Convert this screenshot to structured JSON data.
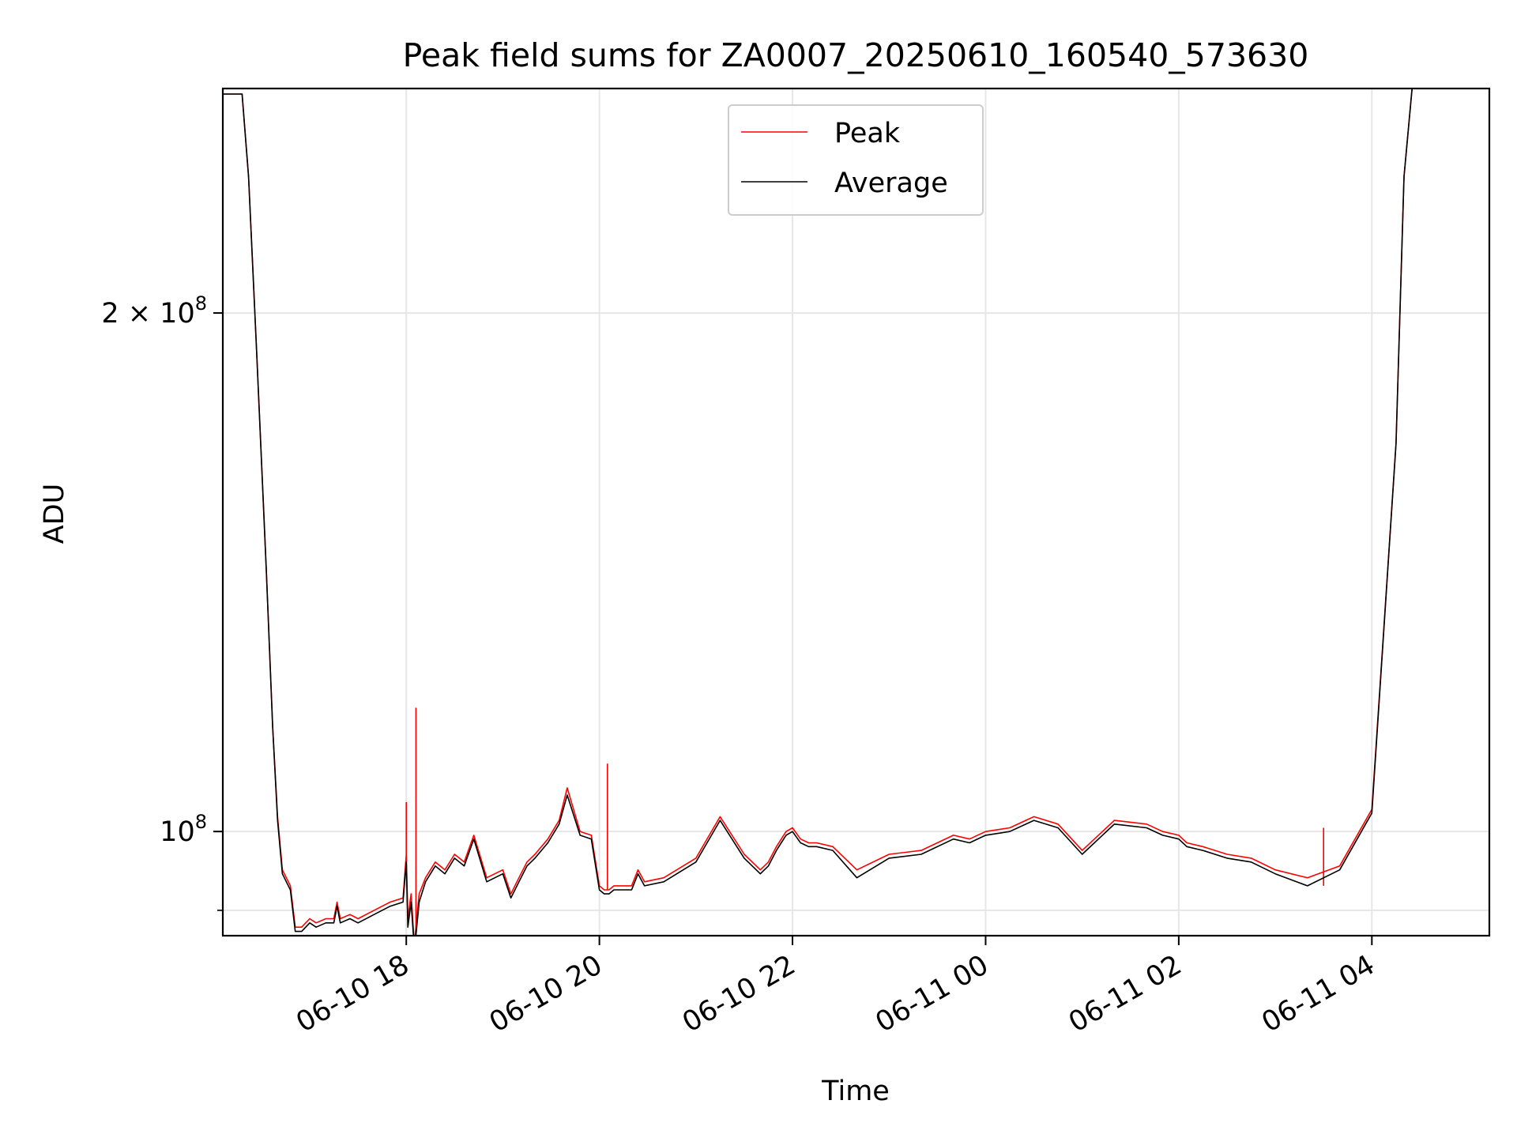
{
  "chart_data": {
    "type": "line",
    "title": "Peak field sums for ZA0007_20250610_160540_573630",
    "xlabel": "Time",
    "ylabel": "ADU",
    "yscale": "log",
    "xlim": [
      "2025-06-10 16:06",
      "2025-06-11 05:13"
    ],
    "ylim": [
      87000000,
      270000000
    ],
    "grid": true,
    "legend": {
      "placement": "upper center",
      "entries": [
        "Peak",
        "Average"
      ]
    },
    "x_ticks": [
      {
        "value": "2025-06-10 18:00",
        "label": "06-10 18"
      },
      {
        "value": "2025-06-10 20:00",
        "label": "06-10 20"
      },
      {
        "value": "2025-06-10 22:00",
        "label": "06-10 22"
      },
      {
        "value": "2025-06-11 00:00",
        "label": "06-11 00"
      },
      {
        "value": "2025-06-11 02:00",
        "label": "06-11 02"
      },
      {
        "value": "2025-06-11 04:00",
        "label": "06-11 04"
      }
    ],
    "y_ticks": [
      {
        "value": 200000000,
        "base": "2 × 10",
        "exp": "8"
      },
      {
        "value": 100000000,
        "base": "10",
        "exp": "8"
      }
    ],
    "y_minor_ticks": [
      90000000
    ],
    "series": [
      {
        "name": "Peak",
        "color": "#ff0000",
        "x": [
          "2025-06-10 16:06",
          "2025-06-10 16:18",
          "2025-06-10 16:22",
          "2025-06-10 16:27",
          "2025-06-10 16:33",
          "2025-06-10 16:37",
          "2025-06-10 16:40",
          "2025-06-10 16:43",
          "2025-06-10 16:48",
          "2025-06-10 16:51",
          "2025-06-10 16:55",
          "2025-06-10 17:00",
          "2025-06-10 17:04",
          "2025-06-10 17:10",
          "2025-06-10 17:15",
          "2025-06-10 17:17",
          "2025-06-10 17:19",
          "2025-06-10 17:25",
          "2025-06-10 17:30",
          "2025-06-10 17:40",
          "2025-06-10 17:50",
          "2025-06-10 17:58",
          "2025-06-10 18:00",
          "2025-06-10 18:01",
          "2025-06-10 18:03",
          "2025-06-10 18:05",
          "2025-06-10 18:06",
          "2025-06-10 18:08",
          "2025-06-10 18:12",
          "2025-06-10 18:18",
          "2025-06-10 18:24",
          "2025-06-10 18:30",
          "2025-06-10 18:36",
          "2025-06-10 18:42",
          "2025-06-10 18:50",
          "2025-06-10 19:00",
          "2025-06-10 19:05",
          "2025-06-10 19:10",
          "2025-06-10 19:15",
          "2025-06-10 19:20",
          "2025-06-10 19:28",
          "2025-06-10 19:35",
          "2025-06-10 19:40",
          "2025-06-10 19:48",
          "2025-06-10 19:55",
          "2025-06-10 20:00",
          "2025-06-10 20:03",
          "2025-06-10 20:05",
          "2025-06-10 20:06",
          "2025-06-10 20:09",
          "2025-06-10 20:20",
          "2025-06-10 20:24",
          "2025-06-10 20:28",
          "2025-06-10 20:40",
          "2025-06-10 21:00",
          "2025-06-10 21:15",
          "2025-06-10 21:30",
          "2025-06-10 21:40",
          "2025-06-10 21:45",
          "2025-06-10 21:50",
          "2025-06-10 21:56",
          "2025-06-10 22:00",
          "2025-06-10 22:05",
          "2025-06-10 22:10",
          "2025-06-10 22:15",
          "2025-06-10 22:25",
          "2025-06-10 22:40",
          "2025-06-10 23:00",
          "2025-06-10 23:20",
          "2025-06-10 23:40",
          "2025-06-10 23:50",
          "2025-06-11 00:00",
          "2025-06-11 00:15",
          "2025-06-11 00:30",
          "2025-06-11 00:45",
          "2025-06-11 01:00",
          "2025-06-11 01:20",
          "2025-06-11 01:40",
          "2025-06-11 01:50",
          "2025-06-11 02:00",
          "2025-06-11 02:05",
          "2025-06-11 02:15",
          "2025-06-11 02:30",
          "2025-06-11 02:45",
          "2025-06-11 03:00",
          "2025-06-11 03:20",
          "2025-06-11 03:40",
          "2025-06-11 04:00",
          "2025-06-11 04:15",
          "2025-06-11 04:20",
          "2025-06-11 04:25",
          "2025-06-11 04:33",
          "2025-06-11 04:38",
          "2025-06-11 04:42",
          "2025-06-11 04:46",
          "2025-06-11 04:49",
          "2025-06-11 04:52",
          "2025-06-11 04:55",
          "2025-06-11 05:00",
          "2025-06-11 05:13"
        ],
        "values": [
          268000000,
          268000000,
          240000000,
          190000000,
          142000000,
          115000000,
          102000000,
          95000000,
          93000000,
          88000000,
          88000000,
          89000000,
          88500000,
          89000000,
          89000000,
          91000000,
          89000000,
          89500000,
          89000000,
          90000000,
          91000000,
          91500000,
          97000000,
          89000000,
          92000000,
          86000000,
          88000000,
          92000000,
          94000000,
          96000000,
          95000000,
          97000000,
          96000000,
          99500000,
          94000000,
          95000000,
          92000000,
          94000000,
          96000000,
          97000000,
          99000000,
          101500000,
          106000000,
          100000000,
          99500000,
          93000000,
          92500000,
          92500000,
          92500000,
          93000000,
          93000000,
          95000000,
          93500000,
          94000000,
          96500000,
          102000000,
          97000000,
          95000000,
          96000000,
          98000000,
          100000000,
          100500000,
          99000000,
          98500000,
          98500000,
          98000000,
          95000000,
          97000000,
          97500000,
          99500000,
          99000000,
          100000000,
          100500000,
          102000000,
          101000000,
          97500000,
          101500000,
          101000000,
          100000000,
          99500000,
          98500000,
          98000000,
          97000000,
          96500000,
          95000000,
          94000000,
          95500000,
          103000000,
          168000000,
          240000000,
          270000000,
          270000000,
          270000000,
          270000000,
          270000000,
          270000000,
          270000000,
          270000000,
          270000000,
          270000000
        ],
        "spikes": [
          {
            "x": "2025-06-10 18:00",
            "value": 104000000
          },
          {
            "x": "2025-06-10 18:06",
            "value": 118000000
          },
          {
            "x": "2025-06-10 20:05",
            "value": 109500000
          },
          {
            "x": "2025-06-11 03:30",
            "value": 100500000
          }
        ]
      },
      {
        "name": "Average",
        "color": "#000000",
        "x": [
          "2025-06-10 16:06",
          "2025-06-10 16:18",
          "2025-06-10 16:22",
          "2025-06-10 16:27",
          "2025-06-10 16:33",
          "2025-06-10 16:37",
          "2025-06-10 16:40",
          "2025-06-10 16:43",
          "2025-06-10 16:48",
          "2025-06-10 16:51",
          "2025-06-10 16:55",
          "2025-06-10 17:00",
          "2025-06-10 17:04",
          "2025-06-10 17:10",
          "2025-06-10 17:15",
          "2025-06-10 17:17",
          "2025-06-10 17:19",
          "2025-06-10 17:25",
          "2025-06-10 17:30",
          "2025-06-10 17:40",
          "2025-06-10 17:50",
          "2025-06-10 17:58",
          "2025-06-10 18:00",
          "2025-06-10 18:01",
          "2025-06-10 18:03",
          "2025-06-10 18:05",
          "2025-06-10 18:06",
          "2025-06-10 18:08",
          "2025-06-10 18:12",
          "2025-06-10 18:18",
          "2025-06-10 18:24",
          "2025-06-10 18:30",
          "2025-06-10 18:36",
          "2025-06-10 18:42",
          "2025-06-10 18:50",
          "2025-06-10 19:00",
          "2025-06-10 19:05",
          "2025-06-10 19:10",
          "2025-06-10 19:15",
          "2025-06-10 19:20",
          "2025-06-10 19:28",
          "2025-06-10 19:35",
          "2025-06-10 19:40",
          "2025-06-10 19:48",
          "2025-06-10 19:55",
          "2025-06-10 20:00",
          "2025-06-10 20:03",
          "2025-06-10 20:05",
          "2025-06-10 20:06",
          "2025-06-10 20:09",
          "2025-06-10 20:20",
          "2025-06-10 20:24",
          "2025-06-10 20:28",
          "2025-06-10 20:40",
          "2025-06-10 21:00",
          "2025-06-10 21:15",
          "2025-06-10 21:30",
          "2025-06-10 21:40",
          "2025-06-10 21:45",
          "2025-06-10 21:50",
          "2025-06-10 21:56",
          "2025-06-10 22:00",
          "2025-06-10 22:05",
          "2025-06-10 22:10",
          "2025-06-10 22:15",
          "2025-06-10 22:25",
          "2025-06-10 22:40",
          "2025-06-10 23:00",
          "2025-06-10 23:20",
          "2025-06-10 23:40",
          "2025-06-10 23:50",
          "2025-06-11 00:00",
          "2025-06-11 00:15",
          "2025-06-11 00:30",
          "2025-06-11 00:45",
          "2025-06-11 01:00",
          "2025-06-11 01:20",
          "2025-06-11 01:40",
          "2025-06-11 01:50",
          "2025-06-11 02:00",
          "2025-06-11 02:05",
          "2025-06-11 02:15",
          "2025-06-11 02:30",
          "2025-06-11 02:45",
          "2025-06-11 03:00",
          "2025-06-11 03:20",
          "2025-06-11 03:40",
          "2025-06-11 04:00",
          "2025-06-11 04:15",
          "2025-06-11 04:20",
          "2025-06-11 04:25",
          "2025-06-11 04:33",
          "2025-06-11 04:38",
          "2025-06-11 04:42",
          "2025-06-11 04:46",
          "2025-06-11 04:49",
          "2025-06-11 04:52",
          "2025-06-11 04:55",
          "2025-06-11 05:00",
          "2025-06-11 05:13"
        ],
        "values": [
          268000000,
          268000000,
          240000000,
          190000000,
          142000000,
          115000000,
          101500000,
          94500000,
          92500000,
          87500000,
          87500000,
          88500000,
          88000000,
          88500000,
          88500000,
          90500000,
          88500000,
          89000000,
          88500000,
          89500000,
          90500000,
          91000000,
          96000000,
          88000000,
          91000000,
          85500000,
          87000000,
          91000000,
          93500000,
          95500000,
          94500000,
          96500000,
          95500000,
          99000000,
          93500000,
          94500000,
          91500000,
          93500000,
          95500000,
          96500000,
          98500000,
          101000000,
          105000000,
          99500000,
          99000000,
          92500000,
          92000000,
          92000000,
          92000000,
          92500000,
          92500000,
          94500000,
          93000000,
          93500000,
          96000000,
          101500000,
          96500000,
          94500000,
          95500000,
          97500000,
          99500000,
          100000000,
          98500000,
          98000000,
          98000000,
          97500000,
          94000000,
          96500000,
          97000000,
          99000000,
          98500000,
          99500000,
          100000000,
          101500000,
          100500000,
          97000000,
          101000000,
          100500000,
          99500000,
          99000000,
          98000000,
          97500000,
          96500000,
          96000000,
          94500000,
          93000000,
          95000000,
          102500000,
          168000000,
          240000000,
          270000000,
          270000000,
          270000000,
          270000000,
          270000000,
          270000000,
          270000000,
          270000000,
          270000000,
          270000000
        ]
      }
    ]
  }
}
